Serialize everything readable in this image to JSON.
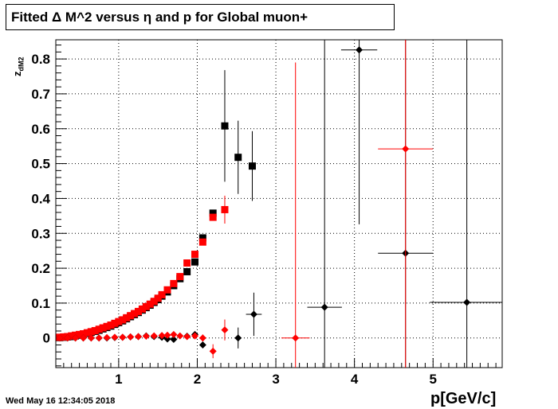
{
  "chart_data": {
    "type": "scatter",
    "title": "Fitted Δ M^2 versus η and p for Global muon+",
    "xlabel": "p[GeV/c]",
    "ylabel": "z",
    "ylabel_sub": "dM2",
    "xlim": [
      0.2,
      5.88
    ],
    "ylim": [
      -0.085,
      0.855
    ],
    "grid": true,
    "x_ticks": [
      1,
      2,
      3,
      4,
      5
    ],
    "y_ticks": [
      0,
      0.1,
      0.2,
      0.3,
      0.4,
      0.5,
      0.6,
      0.7,
      0.8
    ],
    "series": [
      {
        "color": "#000000",
        "marker": "square",
        "points": [
          {
            "x": 0.25,
            "y": 0.001
          },
          {
            "x": 0.3,
            "y": 0.002
          },
          {
            "x": 0.35,
            "y": 0.003
          },
          {
            "x": 0.4,
            "y": 0.004
          },
          {
            "x": 0.45,
            "y": 0.006
          },
          {
            "x": 0.5,
            "y": 0.008
          },
          {
            "x": 0.55,
            "y": 0.01
          },
          {
            "x": 0.6,
            "y": 0.013
          },
          {
            "x": 0.65,
            "y": 0.016
          },
          {
            "x": 0.7,
            "y": 0.019
          },
          {
            "x": 0.75,
            "y": 0.022
          },
          {
            "x": 0.8,
            "y": 0.026
          },
          {
            "x": 0.85,
            "y": 0.03
          },
          {
            "x": 0.9,
            "y": 0.034
          },
          {
            "x": 0.95,
            "y": 0.039
          },
          {
            "x": 1.0,
            "y": 0.044
          },
          {
            "x": 1.05,
            "y": 0.049
          },
          {
            "x": 1.1,
            "y": 0.055
          },
          {
            "x": 1.15,
            "y": 0.061
          },
          {
            "x": 1.2,
            "y": 0.067
          },
          {
            "x": 1.25,
            "y": 0.073
          },
          {
            "x": 1.3,
            "y": 0.08
          },
          {
            "x": 1.35,
            "y": 0.087
          },
          {
            "x": 1.4,
            "y": 0.094
          },
          {
            "x": 1.45,
            "y": 0.102
          },
          {
            "x": 1.5,
            "y": 0.11
          },
          {
            "x": 1.55,
            "y": 0.12
          },
          {
            "x": 1.62,
            "y": 0.132
          },
          {
            "x": 1.7,
            "y": 0.15
          },
          {
            "x": 1.78,
            "y": 0.17
          },
          {
            "x": 1.87,
            "y": 0.19
          },
          {
            "x": 1.97,
            "y": 0.218
          },
          {
            "x": 2.07,
            "y": 0.287
          },
          {
            "x": 2.2,
            "y": 0.358
          },
          {
            "x": 2.35,
            "y": 0.608,
            "ey": 0.16
          },
          {
            "x": 2.52,
            "y": 0.518,
            "ey": 0.105
          },
          {
            "x": 2.7,
            "y": 0.493,
            "ey": 0.1
          }
        ]
      },
      {
        "color": "#ff0000",
        "marker": "square",
        "points": [
          {
            "x": 0.25,
            "y": 0.002
          },
          {
            "x": 0.3,
            "y": 0.003
          },
          {
            "x": 0.35,
            "y": 0.004
          },
          {
            "x": 0.4,
            "y": 0.006
          },
          {
            "x": 0.45,
            "y": 0.008
          },
          {
            "x": 0.5,
            "y": 0.01
          },
          {
            "x": 0.55,
            "y": 0.012
          },
          {
            "x": 0.6,
            "y": 0.015
          },
          {
            "x": 0.65,
            "y": 0.018
          },
          {
            "x": 0.7,
            "y": 0.021
          },
          {
            "x": 0.75,
            "y": 0.025
          },
          {
            "x": 0.8,
            "y": 0.029
          },
          {
            "x": 0.85,
            "y": 0.033
          },
          {
            "x": 0.9,
            "y": 0.037
          },
          {
            "x": 0.95,
            "y": 0.042
          },
          {
            "x": 1.0,
            "y": 0.047
          },
          {
            "x": 1.05,
            "y": 0.052
          },
          {
            "x": 1.1,
            "y": 0.058
          },
          {
            "x": 1.15,
            "y": 0.064
          },
          {
            "x": 1.2,
            "y": 0.07
          },
          {
            "x": 1.25,
            "y": 0.076
          },
          {
            "x": 1.3,
            "y": 0.083
          },
          {
            "x": 1.35,
            "y": 0.09
          },
          {
            "x": 1.4,
            "y": 0.097
          },
          {
            "x": 1.45,
            "y": 0.105
          },
          {
            "x": 1.5,
            "y": 0.114
          },
          {
            "x": 1.55,
            "y": 0.124
          },
          {
            "x": 1.62,
            "y": 0.138
          },
          {
            "x": 1.7,
            "y": 0.156
          },
          {
            "x": 1.78,
            "y": 0.176
          },
          {
            "x": 1.87,
            "y": 0.215
          },
          {
            "x": 1.97,
            "y": 0.24
          },
          {
            "x": 2.07,
            "y": 0.275
          },
          {
            "x": 2.2,
            "y": 0.346
          },
          {
            "x": 2.35,
            "y": 0.368,
            "ey": 0.04
          }
        ]
      },
      {
        "color": "#000000",
        "marker": "diamond",
        "points": [
          {
            "x": 0.25,
            "y": 0.0
          },
          {
            "x": 0.35,
            "y": 0.0
          },
          {
            "x": 0.45,
            "y": 0.0
          },
          {
            "x": 0.55,
            "y": 0.0
          },
          {
            "x": 0.65,
            "y": 0.0
          },
          {
            "x": 0.75,
            "y": 0.0
          },
          {
            "x": 0.85,
            "y": 0.0
          },
          {
            "x": 0.95,
            "y": 0.001
          },
          {
            "x": 1.05,
            "y": 0.002
          },
          {
            "x": 1.15,
            "y": 0.003
          },
          {
            "x": 1.25,
            "y": 0.004
          },
          {
            "x": 1.35,
            "y": 0.006
          },
          {
            "x": 1.45,
            "y": 0.004
          },
          {
            "x": 1.55,
            "y": 0.002
          },
          {
            "x": 1.62,
            "y": -0.003
          },
          {
            "x": 1.7,
            "y": -0.004
          },
          {
            "x": 1.87,
            "y": 0.005
          },
          {
            "x": 1.97,
            "y": 0.01
          },
          {
            "x": 2.07,
            "y": -0.02
          },
          {
            "x": 2.52,
            "y": 0.0,
            "ey": 0.03
          },
          {
            "x": 2.72,
            "y": 0.068,
            "ey": 0.062,
            "ex": 0.1
          },
          {
            "x": 3.62,
            "y": 0.088,
            "ey": 1.0,
            "ex": 0.22
          },
          {
            "x": 4.06,
            "y": 0.826,
            "ey": 0.5,
            "ex": 0.23
          },
          {
            "x": 4.65,
            "y": 0.243,
            "ey": 1.0,
            "ex": 0.35
          },
          {
            "x": 5.43,
            "y": 0.102,
            "ey": 1.0,
            "ex": 0.47
          }
        ]
      },
      {
        "color": "#ff0000",
        "marker": "diamond",
        "points": [
          {
            "x": 0.25,
            "y": 0.0
          },
          {
            "x": 0.35,
            "y": 0.0
          },
          {
            "x": 0.45,
            "y": 0.0
          },
          {
            "x": 0.55,
            "y": 0.0
          },
          {
            "x": 0.65,
            "y": 0.0
          },
          {
            "x": 0.75,
            "y": 0.0
          },
          {
            "x": 0.85,
            "y": 0.001
          },
          {
            "x": 0.95,
            "y": 0.002
          },
          {
            "x": 1.05,
            "y": 0.002
          },
          {
            "x": 1.15,
            "y": 0.003
          },
          {
            "x": 1.25,
            "y": 0.004
          },
          {
            "x": 1.35,
            "y": 0.005
          },
          {
            "x": 1.45,
            "y": 0.006
          },
          {
            "x": 1.55,
            "y": 0.007
          },
          {
            "x": 1.62,
            "y": 0.008
          },
          {
            "x": 1.7,
            "y": 0.01
          },
          {
            "x": 1.78,
            "y": 0.006
          },
          {
            "x": 1.87,
            "y": 0.004
          },
          {
            "x": 1.97,
            "y": 0.006
          },
          {
            "x": 2.07,
            "y": 0.0,
            "ey": 0.01
          },
          {
            "x": 2.2,
            "y": -0.038,
            "ey": 0.02
          },
          {
            "x": 2.35,
            "y": 0.023,
            "ey": 0.03
          },
          {
            "x": 3.25,
            "y": 0.0,
            "ey": 0.79,
            "ex": 0.18
          },
          {
            "x": 4.65,
            "y": 0.542,
            "ey": 0.9,
            "ex": 0.35
          }
        ]
      }
    ],
    "date_stamp": "Wed May 16 12:34:05 2018"
  }
}
